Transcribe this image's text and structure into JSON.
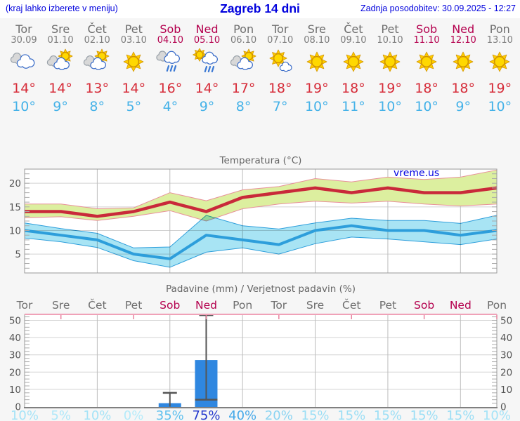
{
  "header": {
    "left_note": "(kraj lahko izberete v meniju)",
    "title": "Zagreb 14 dni",
    "updated": "Zadnja posodobitev: 30.09.2025 - 12:27"
  },
  "watermark": "vreme.us",
  "days": [
    {
      "name": "Tor",
      "date": "30.09",
      "weekend": false,
      "icon": "cloudy",
      "high": 14,
      "low": 10,
      "prob": "10%",
      "prob_color": "#a5e3f7"
    },
    {
      "name": "Sre",
      "date": "01.10",
      "weekend": false,
      "icon": "partly",
      "high": 14,
      "low": 9,
      "prob": "5%",
      "prob_color": "#aee7f9"
    },
    {
      "name": "Čet",
      "date": "02.10",
      "weekend": false,
      "icon": "partly",
      "high": 13,
      "low": 8,
      "prob": "10%",
      "prob_color": "#a5e3f7"
    },
    {
      "name": "Pet",
      "date": "03.10",
      "weekend": false,
      "icon": "sunny",
      "high": 14,
      "low": 5,
      "prob": "0%",
      "prob_color": "#b5ebfa"
    },
    {
      "name": "Sob",
      "date": "04.10",
      "weekend": true,
      "icon": "rain",
      "high": 16,
      "low": 4,
      "prob": "35%",
      "prob_color": "#5fc0ee"
    },
    {
      "name": "Ned",
      "date": "05.10",
      "weekend": true,
      "icon": "sun-shower",
      "high": 14,
      "low": 9,
      "prob": "75%",
      "prob_color": "#2337cd"
    },
    {
      "name": "Pon",
      "date": "06.10",
      "weekend": false,
      "icon": "partly",
      "high": 17,
      "low": 8,
      "prob": "40%",
      "prob_color": "#47a9e9"
    },
    {
      "name": "Tor",
      "date": "07.10",
      "weekend": false,
      "icon": "mostly-sunny",
      "high": 18,
      "low": 7,
      "prob": "20%",
      "prob_color": "#8bd4f2"
    },
    {
      "name": "Sre",
      "date": "08.10",
      "weekend": false,
      "icon": "sunny",
      "high": 19,
      "low": 10,
      "prob": "15%",
      "prob_color": "#9bdef5"
    },
    {
      "name": "Čet",
      "date": "09.10",
      "weekend": false,
      "icon": "sunny",
      "high": 18,
      "low": 11,
      "prob": "15%",
      "prob_color": "#9bdef5"
    },
    {
      "name": "Pet",
      "date": "10.10",
      "weekend": false,
      "icon": "sunny",
      "high": 19,
      "low": 10,
      "prob": "15%",
      "prob_color": "#9bdef5"
    },
    {
      "name": "Sob",
      "date": "11.10",
      "weekend": true,
      "icon": "sunny",
      "high": 18,
      "low": 10,
      "prob": "15%",
      "prob_color": "#9bdef5"
    },
    {
      "name": "Ned",
      "date": "12.10",
      "weekend": true,
      "icon": "sunny",
      "high": 18,
      "low": 9,
      "prob": "15%",
      "prob_color": "#9bdef5"
    },
    {
      "name": "Pon",
      "date": "13.10",
      "weekend": false,
      "icon": "sunny",
      "high": 19,
      "low": 10,
      "prob": "10%",
      "prob_color": "#a5e3f7"
    }
  ],
  "chart_data": [
    {
      "type": "line",
      "title": "Temperatura (°C)",
      "x_labels": [
        "Tor",
        "Sre",
        "Čet",
        "Pet",
        "Sob",
        "Ned",
        "Pon",
        "Tor",
        "Sre",
        "Čet",
        "Pet",
        "Sob",
        "Ned",
        "Pon"
      ],
      "ylim": [
        1,
        23
      ],
      "yticks": [
        5,
        10,
        15,
        20
      ],
      "grid": true,
      "legend_position": "none",
      "series": [
        {
          "name": "max temperature",
          "color": "#c9293a",
          "values": [
            14,
            14,
            13,
            14,
            16,
            14,
            17,
            18,
            19,
            18,
            19,
            18,
            18,
            19
          ]
        },
        {
          "name": "max band upper",
          "values": [
            15.6,
            15.6,
            14.6,
            14.8,
            18.0,
            16.3,
            18.6,
            19.3,
            21.0,
            20.3,
            21.3,
            20.8,
            21.3,
            22.8
          ]
        },
        {
          "name": "max band lower",
          "values": [
            12.7,
            12.9,
            12.1,
            13.0,
            14.2,
            12.0,
            14.6,
            15.6,
            16.2,
            15.8,
            16.2,
            15.6,
            15.2,
            15.6
          ]
        },
        {
          "name": "min temperature",
          "color": "#2d9edb",
          "values": [
            10,
            9,
            8,
            5,
            4,
            9,
            8,
            7,
            10,
            11,
            10,
            10,
            9,
            10
          ]
        },
        {
          "name": "min band upper",
          "values": [
            11.6,
            10.4,
            9.4,
            6.3,
            6.5,
            13.2,
            11.0,
            10.3,
            11.6,
            12.6,
            12.1,
            12.1,
            11.5,
            13.2
          ]
        },
        {
          "name": "min band lower",
          "values": [
            8.4,
            7.6,
            6.4,
            3.6,
            2.2,
            5.4,
            6.3,
            5.0,
            7.2,
            8.6,
            8.2,
            7.6,
            7.0,
            8.2
          ]
        }
      ],
      "band_colors": {
        "max_fill": "#dcef9f",
        "max_edge": "#e8909a",
        "min_fill": "#a8e4f4",
        "min_edge": "#2d9edb"
      }
    },
    {
      "type": "bar",
      "title": "Padavine (mm) / Verjetnost padavin (%)",
      "categories": [
        "Tor",
        "Sre",
        "Čet",
        "Pet",
        "Sob",
        "Ned",
        "Pon",
        "Tor",
        "Sre",
        "Čet",
        "Pet",
        "Sob",
        "Ned",
        "Pon"
      ],
      "values": [
        0,
        0,
        0,
        0,
        2,
        27,
        0,
        0,
        0,
        0,
        0,
        0,
        0,
        0
      ],
      "whiskers": [
        null,
        null,
        null,
        null,
        {
          "low": null,
          "high": 8
        },
        {
          "low": 4,
          "high": 53
        },
        null,
        null,
        null,
        null,
        null,
        null,
        null,
        null
      ],
      "probabilities": [
        "10%",
        "5%",
        "10%",
        "0%",
        "35%",
        "75%",
        "40%",
        "20%",
        "15%",
        "15%",
        "15%",
        "15%",
        "15%",
        "10%"
      ],
      "ylim": [
        0,
        54
      ],
      "yticks": [
        0,
        10,
        20,
        30,
        40,
        50
      ],
      "bar_color": "#2f87e0",
      "whisker_color": "#555555"
    }
  ],
  "style": {
    "weekday_color": "#6e6e6e",
    "weekend_color": "#b4004e",
    "high_color": "#d62c39",
    "low_color": "#45b2e8",
    "chart_text": "#666666",
    "watermark_color": "#0000e0"
  }
}
